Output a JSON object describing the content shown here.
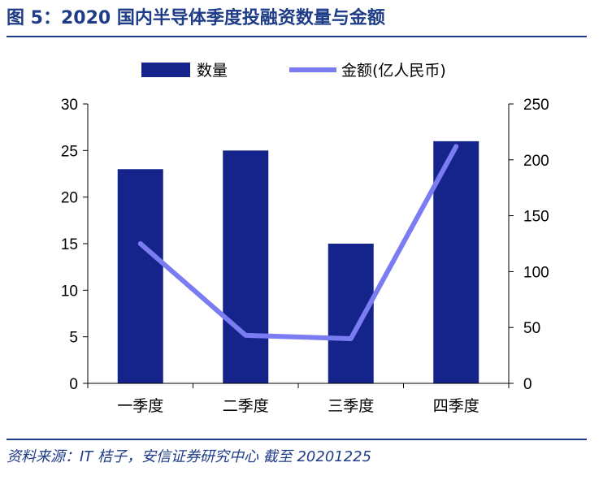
{
  "header": {
    "title": "图 5：2020 国内半导体季度投融资数量与金额"
  },
  "footer": {
    "source": "资料来源：IT 桔子，安信证券研究中心  截至 20201225"
  },
  "colors": {
    "bar": "#14248a",
    "line": "#7b7bf2",
    "accent": "#1f3c88"
  },
  "chart_data": {
    "type": "bar",
    "categories": [
      "一季度",
      "二季度",
      "三季度",
      "四季度"
    ],
    "series": [
      {
        "name": "数量",
        "type": "bar",
        "axis": "left",
        "values": [
          23,
          25,
          15,
          26
        ]
      },
      {
        "name": "金额(亿人民币)",
        "type": "line",
        "axis": "right",
        "values": [
          125,
          43,
          40,
          212
        ]
      }
    ],
    "ylim_left": [
      0,
      30
    ],
    "yticks_left": [
      "0",
      "5",
      "10",
      "15",
      "20",
      "25",
      "30"
    ],
    "ylim_right": [
      0,
      250
    ],
    "yticks_right": [
      "0",
      "50",
      "100",
      "150",
      "200",
      "250"
    ],
    "legend": "top-center",
    "grid": false
  }
}
